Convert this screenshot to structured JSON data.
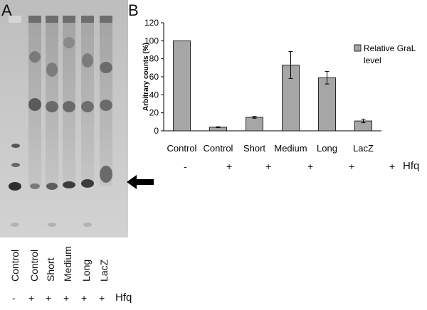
{
  "panel_a": {
    "letter": "A",
    "lanes": [
      "Control",
      "Control",
      "Short",
      "Medium",
      "Long",
      "LacZ"
    ],
    "hfq_signs": [
      "-",
      "+",
      "+",
      "+",
      "+",
      "+"
    ],
    "hfq_label": "Hfq"
  },
  "panel_b": {
    "letter": "B",
    "hfq_signs": [
      "-",
      "+",
      "+",
      "+",
      "+",
      "+"
    ],
    "hfq_label": "Hfq"
  },
  "chart_data": {
    "type": "bar",
    "categories": [
      "Control",
      "Control",
      "Short",
      "Medium",
      "Long",
      "LacZ"
    ],
    "series": [
      {
        "name": "Relative GraL level",
        "values": [
          100,
          4,
          15,
          73,
          59,
          11
        ],
        "errors": [
          0,
          0.5,
          1,
          15,
          7,
          2
        ]
      }
    ],
    "ylabel": "Arbitrary counts (%)",
    "ylim": [
      0,
      120
    ],
    "yticks": [
      0,
      20,
      40,
      60,
      80,
      100,
      120
    ],
    "grid": false,
    "legend": "top-right",
    "bar_color": "#a6a6a6"
  }
}
